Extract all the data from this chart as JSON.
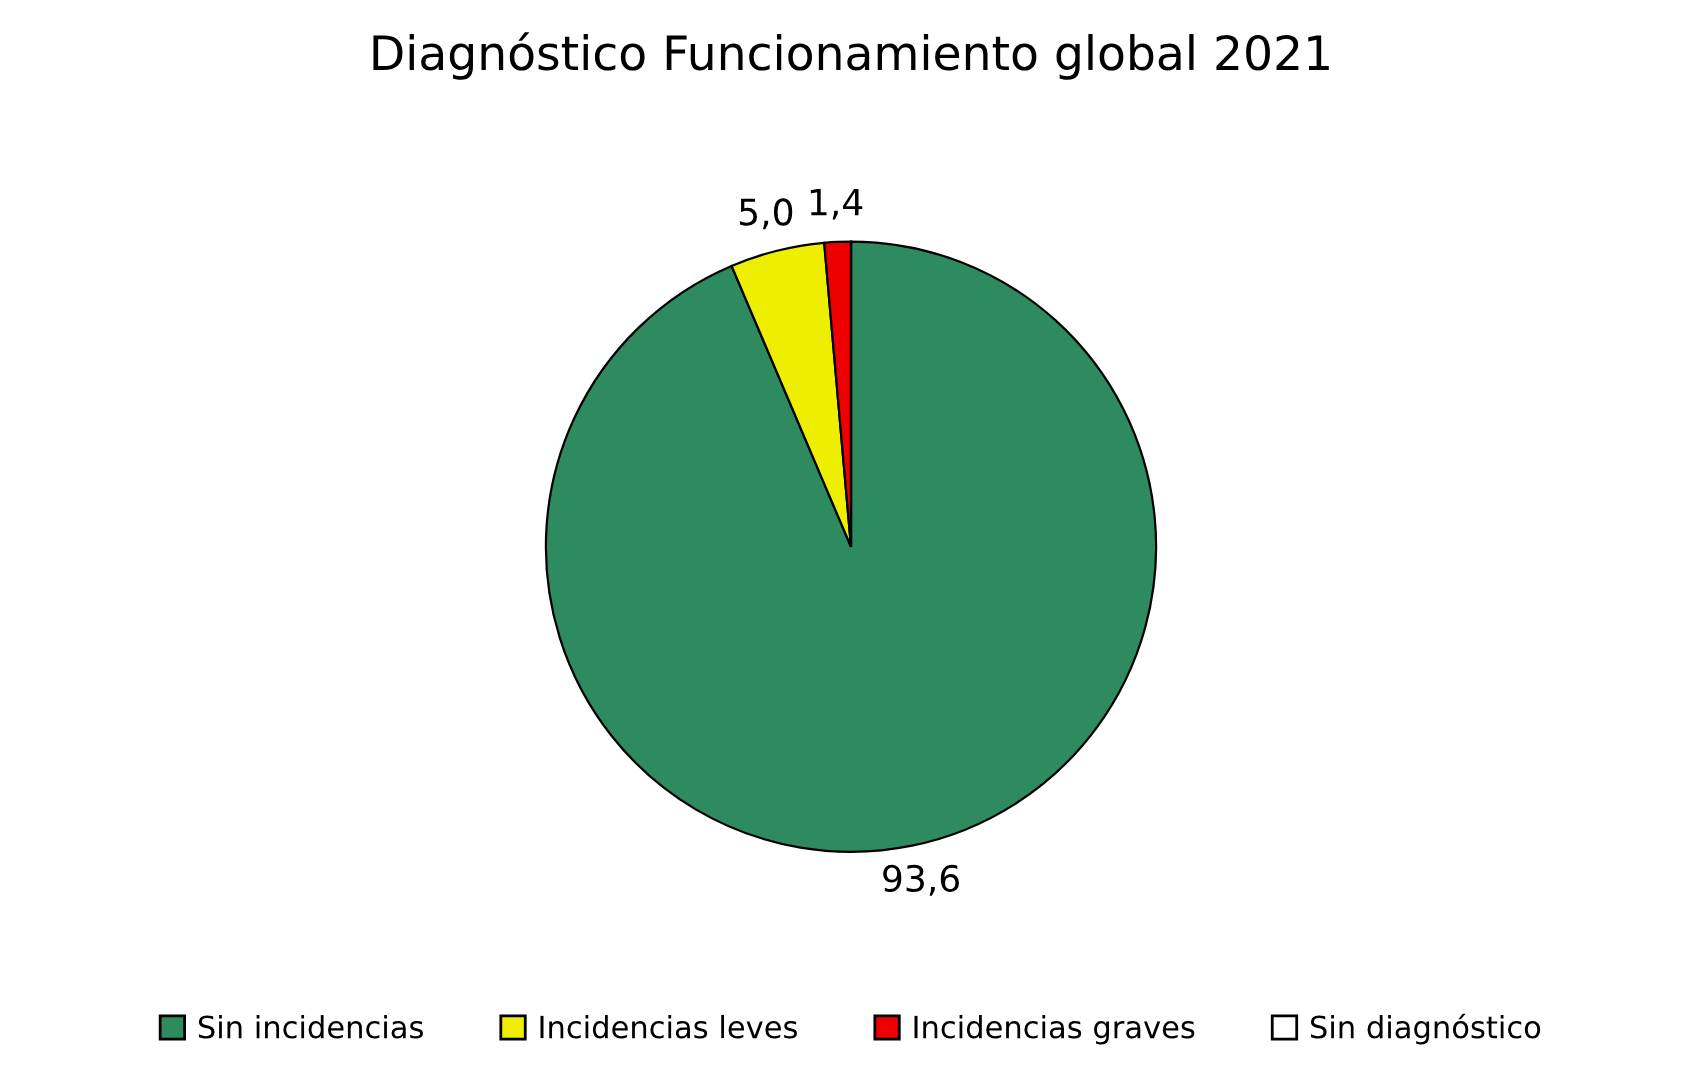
{
  "chart_data": {
    "type": "pie",
    "title": "Diagnóstico Funcionamiento global 2021",
    "categories": [
      "Sin incidencias",
      "Incidencias leves",
      "Incidencias graves",
      "Sin diagnóstico"
    ],
    "values": [
      93.6,
      5.0,
      1.4,
      0
    ],
    "colors": [
      "#2e8b5f",
      "#eeee00",
      "#ee0000",
      "#ffffff"
    ],
    "value_labels": [
      "93,6",
      "5,0",
      "1,4",
      null
    ],
    "legend": "bottom"
  }
}
